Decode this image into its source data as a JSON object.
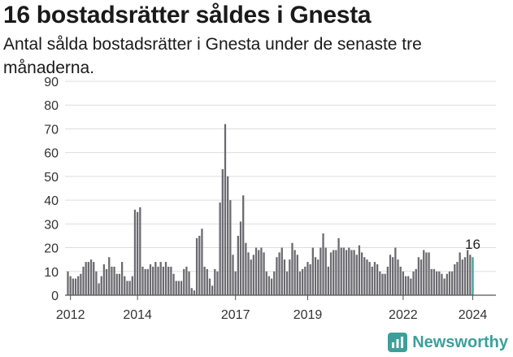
{
  "title": "16 bostadsrätter såldes i Gnesta",
  "subtitle": "Antal sålda bostadsrätter i Gnesta under de senaste tre månaderna.",
  "brand": {
    "name": "Newsworthy",
    "icon": "bar-chart-logo-icon",
    "color": "#3d9f9a"
  },
  "chart_data": {
    "type": "bar",
    "ylim": [
      0,
      90
    ],
    "yticks": [
      0,
      10,
      20,
      30,
      40,
      50,
      60,
      70,
      80,
      90
    ],
    "xticks": [
      "2012",
      "2014",
      "2017",
      "2019",
      "2022",
      "2024"
    ],
    "grid": true,
    "bar_color": "#6b6a70",
    "highlight_color": "#3d9f9a",
    "last_label": "16",
    "values": [
      10,
      8,
      7,
      7,
      8,
      9,
      12,
      14,
      14,
      15,
      14,
      10,
      5,
      8,
      13,
      11,
      16,
      12,
      12,
      9,
      9,
      14,
      8,
      6,
      6,
      8,
      36,
      35,
      37,
      12,
      11,
      11,
      13,
      12,
      14,
      12,
      14,
      12,
      14,
      12,
      12,
      9,
      6,
      6,
      6,
      11,
      12,
      10,
      3,
      2,
      24,
      25,
      28,
      12,
      11,
      7,
      4,
      11,
      10,
      39,
      53,
      72,
      50,
      40,
      17,
      10,
      25,
      31,
      42,
      22,
      18,
      15,
      17,
      20,
      19,
      20,
      18,
      10,
      8,
      7,
      10,
      16,
      18,
      20,
      15,
      10,
      15,
      22,
      19,
      17,
      10,
      11,
      12,
      14,
      13,
      20,
      16,
      15,
      20,
      26,
      20,
      12,
      18,
      19,
      19,
      24,
      20,
      20,
      19,
      20,
      19,
      19,
      17,
      21,
      18,
      16,
      15,
      14,
      12,
      14,
      13,
      10,
      9,
      9,
      12,
      17,
      16,
      20,
      15,
      12,
      10,
      8,
      8,
      7,
      10,
      11,
      16,
      15,
      19,
      18,
      18,
      11,
      11,
      10,
      10,
      9,
      7,
      9,
      10,
      10,
      13,
      14,
      18,
      15,
      16,
      19,
      17,
      16
    ],
    "tick_positions": [
      1,
      27,
      65,
      93,
      130,
      157
    ]
  }
}
